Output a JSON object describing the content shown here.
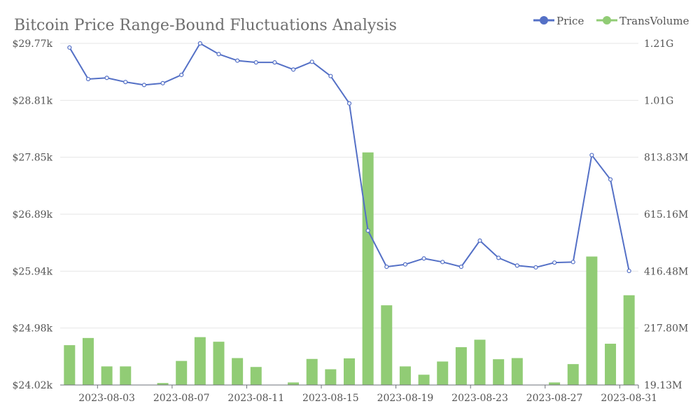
{
  "chart_data": {
    "type": "bar",
    "title": "Bitcoin Price Range-Bound Fluctuations Analysis",
    "categories": [
      "2023-08-01",
      "2023-08-02",
      "2023-08-03",
      "2023-08-04",
      "2023-08-05",
      "2023-08-06",
      "2023-08-07",
      "2023-08-08",
      "2023-08-09",
      "2023-08-10",
      "2023-08-11",
      "2023-08-12",
      "2023-08-13",
      "2023-08-14",
      "2023-08-15",
      "2023-08-16",
      "2023-08-17",
      "2023-08-18",
      "2023-08-19",
      "2023-08-20",
      "2023-08-21",
      "2023-08-22",
      "2023-08-23",
      "2023-08-24",
      "2023-08-25",
      "2023-08-26",
      "2023-08-27",
      "2023-08-28",
      "2023-08-29",
      "2023-08-30",
      "2023-08-31"
    ],
    "x_tick_labels": [
      "2023-08-03",
      "2023-08-07",
      "2023-08-11",
      "2023-08-15",
      "2023-08-19",
      "2023-08-23",
      "2023-08-27",
      "2023-08-31"
    ],
    "x_tick_indices": [
      2,
      6,
      10,
      14,
      18,
      22,
      26,
      30
    ],
    "y_left": {
      "ticks": [
        "$29.77k",
        "$28.81k",
        "$27.85k",
        "$26.89k",
        "$25.94k",
        "$24.98k",
        "$24.02k"
      ],
      "min": 24020,
      "max": 29770
    },
    "y_right": {
      "ticks": [
        "1.21G",
        "1.01G",
        "813.83M",
        "615.16M",
        "416.48M",
        "217.80M",
        "19.13M"
      ],
      "min": 19130000,
      "max": 1210000000
    },
    "legend": {
      "position": "top-right"
    },
    "series": [
      {
        "name": "Price",
        "kind": "line",
        "axis": "left",
        "color": "#5470c6",
        "values": [
          29700,
          29170,
          29190,
          29120,
          29070,
          29100,
          29240,
          29770,
          29590,
          29480,
          29450,
          29450,
          29330,
          29460,
          29220,
          28760,
          26620,
          26010,
          26050,
          26150,
          26090,
          26010,
          26450,
          26160,
          26030,
          26000,
          26080,
          26090,
          27890,
          27480,
          25940
        ]
      },
      {
        "name": "TransVolume",
        "kind": "bar",
        "axis": "right",
        "color": "#91cc75",
        "values": [
          158000000,
          183000000,
          84000000,
          84000000,
          0,
          26000000,
          103000000,
          186000000,
          170000000,
          113000000,
          82000000,
          0,
          28000000,
          110000000,
          74000000,
          112000000,
          830000000,
          297000000,
          84000000,
          55000000,
          101000000,
          151000000,
          177000000,
          109000000,
          113000000,
          0,
          28000000,
          92000000,
          467000000,
          163000000,
          332000000
        ]
      }
    ]
  }
}
